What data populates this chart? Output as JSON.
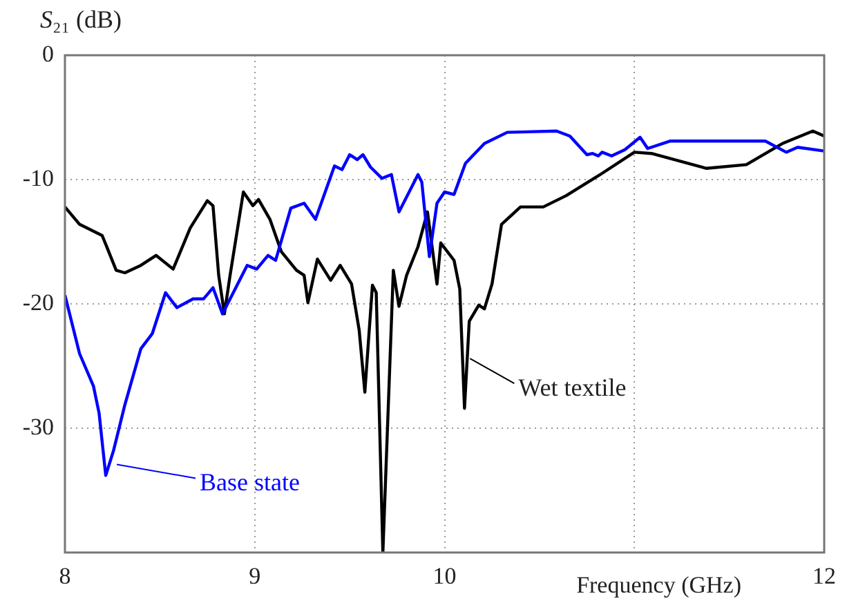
{
  "chart_data": {
    "type": "line",
    "xlabel": "Frequency (GHz)",
    "ylabel": "S₂₁ (dB)",
    "xlim": [
      8,
      12
    ],
    "xticks": [
      8,
      9,
      10,
      {
        "value": 11,
        "label": null
      },
      12
    ],
    "ylim": [
      -40,
      0
    ],
    "yticks": [
      {
        "value": -40,
        "label": null
      },
      -30,
      -20,
      -10,
      0
    ],
    "grid": true,
    "legend": "bottom",
    "marker": "none",
    "line_style": "solid",
    "series": [
      {
        "name": "Base state",
        "color": "#0000ff",
        "x": [
          8.0,
          8.077,
          8.15,
          8.18,
          8.215,
          8.256,
          8.316,
          8.4,
          8.46,
          8.53,
          8.59,
          8.675,
          8.73,
          8.78,
          8.83,
          8.91,
          8.96,
          9.01,
          9.07,
          9.11,
          9.19,
          9.26,
          9.32,
          9.42,
          9.46,
          9.5,
          9.54,
          9.57,
          9.61,
          9.67,
          9.72,
          9.76,
          9.86,
          9.88,
          9.92,
          9.96,
          10.0,
          10.05,
          10.11,
          10.21,
          10.33,
          10.59,
          10.66,
          10.75,
          10.78,
          10.81,
          10.83,
          10.88,
          10.95,
          11.03,
          11.07,
          11.19,
          11.69,
          11.8,
          11.86,
          12.0
        ],
        "values": [
          -19.3,
          -24,
          -26.6,
          -28.8,
          -33.8,
          -31.8,
          -28.1,
          -23.6,
          -22.4,
          -19.1,
          -20.3,
          -19.6,
          -19.6,
          -18.7,
          -20.8,
          -18.4,
          -16.9,
          -17.2,
          -16.1,
          -16.5,
          -12.3,
          -11.9,
          -13.2,
          -8.9,
          -9.2,
          -8.0,
          -8.4,
          -8.0,
          -9.0,
          -9.9,
          -9.6,
          -12.6,
          -9.6,
          -10.2,
          -16.2,
          -11.9,
          -11.0,
          -11.2,
          -8.7,
          -7.1,
          -6.2,
          -6.1,
          -6.5,
          -8.0,
          -7.9,
          -8.1,
          -7.8,
          -8.1,
          -7.6,
          -6.6,
          -7.5,
          -6.9,
          -6.9,
          -7.8,
          -7.4,
          -7.7
        ]
      },
      {
        "name": "Wet textile",
        "color": "#000000",
        "x": [
          8.0,
          8.077,
          8.196,
          8.22,
          8.27,
          8.316,
          8.4,
          8.48,
          8.57,
          8.66,
          8.75,
          8.78,
          8.81,
          8.84,
          8.87,
          8.94,
          8.99,
          9.02,
          9.08,
          9.14,
          9.22,
          9.26,
          9.28,
          9.33,
          9.4,
          9.45,
          9.51,
          9.55,
          9.58,
          9.62,
          9.64,
          9.675,
          9.73,
          9.76,
          9.8,
          9.86,
          9.91,
          9.96,
          9.98,
          10.05,
          10.08,
          10.105,
          10.13,
          10.18,
          10.21,
          10.25,
          10.3,
          10.4,
          10.52,
          10.64,
          10.83,
          11.0,
          11.09,
          11.38,
          11.59,
          11.78,
          11.94,
          12.0
        ],
        "values": [
          -12.2,
          -13.6,
          -14.5,
          -15.4,
          -17.3,
          -17.5,
          -16.9,
          -16.1,
          -17.2,
          -13.9,
          -11.7,
          -12.1,
          -17.7,
          -20.8,
          -17.7,
          -11.0,
          -12.1,
          -11.6,
          -13.2,
          -15.8,
          -17.3,
          -17.7,
          -19.9,
          -16.4,
          -18.1,
          -16.9,
          -18.4,
          -22.1,
          -27.1,
          -18.5,
          -19.1,
          -40,
          -17.3,
          -20.2,
          -17.7,
          -15.4,
          -12.6,
          -18.4,
          -15.1,
          -16.5,
          -18.8,
          -28.4,
          -21.4,
          -20.1,
          -20.4,
          -18.4,
          -13.6,
          -12.2,
          -12.2,
          -11.3,
          -9.5,
          -7.8,
          -7.9,
          -9.1,
          -8.8,
          -7.1,
          -6.1,
          -6.5
        ]
      }
    ]
  }
}
